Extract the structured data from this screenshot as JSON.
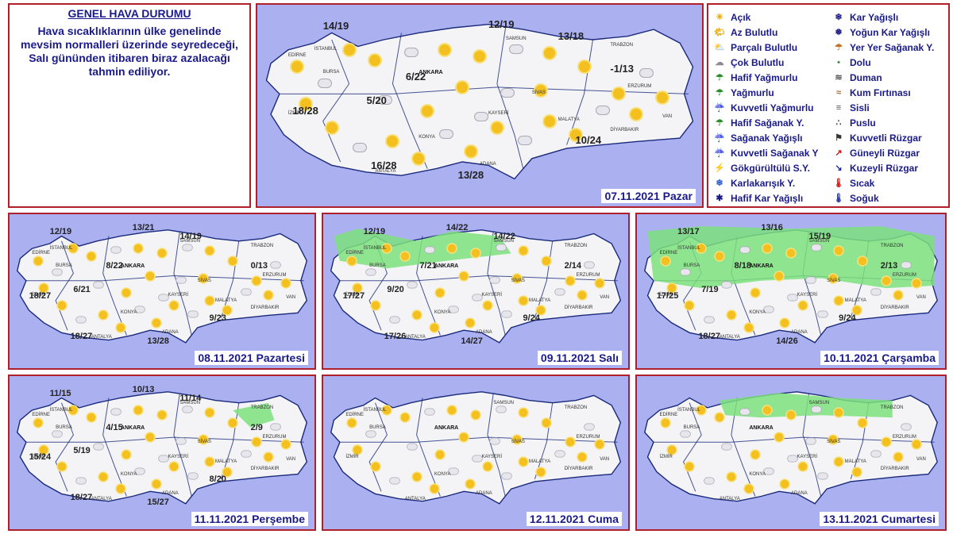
{
  "info": {
    "title": "GENEL HAVA DURUMU",
    "text": "Hava sıcaklıklarının ülke genelinde mevsim normalleri üzerinde seyredeceği, Salı gününden itibaren biraz azalacağı tahmin ediliyor."
  },
  "legend": {
    "col1": [
      {
        "label": "Açık",
        "icon": "sun-icon"
      },
      {
        "label": "Az Bulutlu",
        "icon": "partly-sun-icon"
      },
      {
        "label": "Parçalı Bulutlu",
        "icon": "sun-cloud-icon"
      },
      {
        "label": "Çok Bulutlu",
        "icon": "cloud-icon"
      },
      {
        "label": "Hafif Yağmurlu",
        "icon": "light-rain-icon"
      },
      {
        "label": "Yağmurlu",
        "icon": "rain-icon"
      },
      {
        "label": "Kuvvetli Yağmurlu",
        "icon": "heavy-rain-icon"
      },
      {
        "label": "Hafif Sağanak Y.",
        "icon": "light-shower-icon"
      },
      {
        "label": "Sağanak Yağışlı",
        "icon": "shower-icon"
      },
      {
        "label": "Kuvvetli Sağanak Y",
        "icon": "heavy-shower-icon"
      },
      {
        "label": "Gökgürültülü S.Y.",
        "icon": "thunderstorm-icon"
      },
      {
        "label": "Karlakarışık Y.",
        "icon": "sleet-icon"
      },
      {
        "label": "Hafif Kar Yağışlı",
        "icon": "light-snow-icon"
      }
    ],
    "col2": [
      {
        "label": "Kar Yağışlı",
        "icon": "snow-icon"
      },
      {
        "label": "Yoğun Kar Yağışlı",
        "icon": "heavy-snow-icon"
      },
      {
        "label": "Yer Yer Sağanak Y.",
        "icon": "scattered-shower-icon"
      },
      {
        "label": "Dolu",
        "icon": "hail-icon"
      },
      {
        "label": "Duman",
        "icon": "smoke-icon"
      },
      {
        "label": "Kum Fırtınası",
        "icon": "sandstorm-icon"
      },
      {
        "label": "Sisli",
        "icon": "fog-icon"
      },
      {
        "label": "Puslu",
        "icon": "haze-icon"
      },
      {
        "label": "Kuvvetli Rüzgar",
        "icon": "strong-wind-icon"
      },
      {
        "label": "Güneyli Rüzgar",
        "icon": "south-wind-arrow-icon"
      },
      {
        "label": "Kuzeyli Rüzgar",
        "icon": "north-wind-arrow-icon"
      },
      {
        "label": "Sıcak",
        "icon": "hot-thermometer-icon"
      },
      {
        "label": "Soğuk",
        "icon": "cold-thermometer-icon"
      }
    ]
  },
  "maps": {
    "main": {
      "date": "07.11.2021 Pazar",
      "temps": [
        "14/19",
        "12/19",
        "13/18",
        "-1/13",
        "6/22",
        "5/20",
        "18/28",
        "10/24",
        "16/28",
        "13/28"
      ],
      "ankara": "ANKARA"
    },
    "d1": {
      "date": "08.11.2021 Pazartesi",
      "temps": [
        "12/19",
        "13/21",
        "14/19",
        "0/13",
        "8/22",
        "6/21",
        "18/27",
        "9/23",
        "18/27",
        "13/28"
      ],
      "ankara": "ANKARA"
    },
    "d2": {
      "date": "09.11.2021 Salı",
      "temps": [
        "12/19",
        "14/22",
        "14/22",
        "2/14",
        "7/21",
        "9/20",
        "17/27",
        "9/24",
        "17/26",
        "14/27"
      ],
      "ankara": "ANKARA"
    },
    "d3": {
      "date": "10.11.2021 Çarşamba",
      "temps": [
        "13/17",
        "13/16",
        "15/19",
        "2/13",
        "8/18",
        "7/19",
        "17/25",
        "9/24",
        "18/27",
        "14/26"
      ],
      "ankara": "ANKARA"
    },
    "d4": {
      "date": "11.11.2021 Perşembe",
      "temps": [
        "11/15",
        "10/13",
        "11/14",
        "2/9",
        "4/15",
        "5/19",
        "15/24",
        "8/20",
        "18/27",
        "15/27"
      ],
      "ankara": "ANKARA"
    },
    "d5": {
      "date": "12.11.2021 Cuma",
      "temps": [],
      "ankara": "ANKARA"
    },
    "d6": {
      "date": "13.11.2021 Cumartesi",
      "temps": [],
      "ankara": "ANKARA"
    }
  },
  "colors": {
    "sea": "#aab0f0",
    "land": "#f4f4f6",
    "border": "#1a2a7a",
    "frame": "#b0202a",
    "rain": "#7de07d",
    "text": "#1a1a8a"
  }
}
